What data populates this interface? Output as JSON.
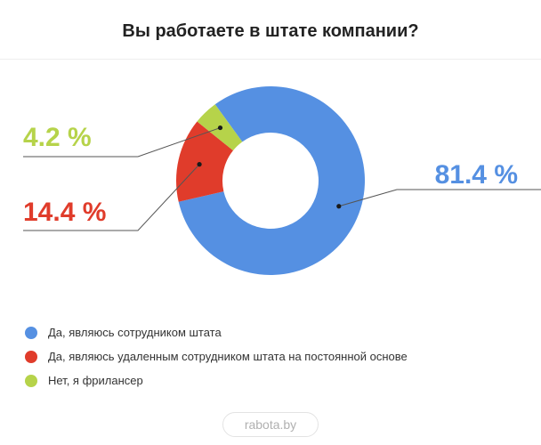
{
  "title": "Вы работаете в штате компании?",
  "colors": {
    "blue": "#5590e2",
    "red": "#e03c2b",
    "green": "#b6d34a"
  },
  "chart_data": {
    "type": "pie",
    "title": "Вы работаете в штате компании?",
    "donut": true,
    "slices": [
      {
        "name": "Да, являюсь сотрудником штата",
        "value": 81.4,
        "label": "81.4 %",
        "color": "#5590e2"
      },
      {
        "name": "Да, являюсь удаленным сотрудником штата на постоянной основе",
        "value": 14.4,
        "label": "14.4 %",
        "color": "#e03c2b"
      },
      {
        "name": "Нет, я фрилансер",
        "value": 4.2,
        "label": "4.2 %",
        "color": "#b6d34a"
      }
    ],
    "legend_position": "bottom-left"
  },
  "source": "rabota.by"
}
